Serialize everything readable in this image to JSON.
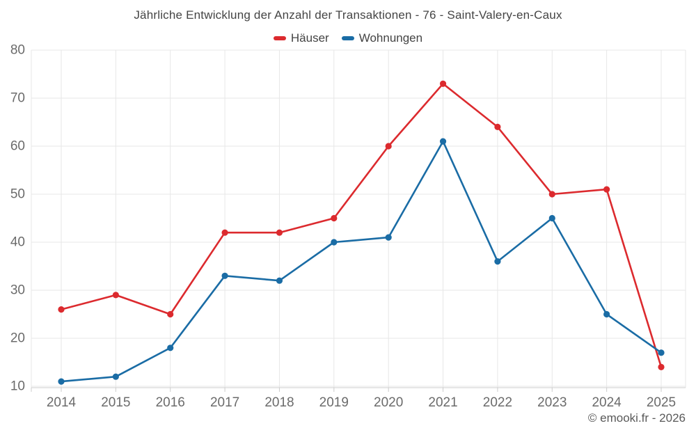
{
  "page": {
    "footer": "© emooki.fr - 2026"
  },
  "colors": {
    "background": "#ffffff",
    "grid": "#e7e7e7",
    "axis": "#cccccc",
    "tick_label": "#6b6b6b",
    "title_text": "#444444",
    "footer_text": "#595959",
    "haeuser_red": "#dc2a2e",
    "wohnungen_blue": "#1a6ca5"
  },
  "chart_data": {
    "type": "line",
    "title": "Jährliche Entwicklung der Anzahl der Transaktionen - 76 - Saint-Valery-en-Caux",
    "categories": [
      "2014",
      "2015",
      "2016",
      "2017",
      "2018",
      "2019",
      "2020",
      "2021",
      "2022",
      "2023",
      "2024",
      "2025"
    ],
    "series": [
      {
        "name": "Häuser",
        "color": "#dc2a2e",
        "values": [
          26,
          29,
          25,
          42,
          42,
          45,
          60,
          73,
          64,
          50,
          51,
          14
        ]
      },
      {
        "name": "Wohnungen",
        "color": "#1a6ca5",
        "values": [
          11,
          12,
          18,
          33,
          32,
          40,
          41,
          61,
          36,
          45,
          25,
          17
        ]
      }
    ],
    "xlabel": "",
    "ylabel": "",
    "ylim": [
      10,
      80
    ],
    "yticks": [
      10,
      20,
      30,
      40,
      50,
      60,
      70,
      80
    ],
    "grid": true,
    "legend_position": "top",
    "marker": "circle"
  }
}
